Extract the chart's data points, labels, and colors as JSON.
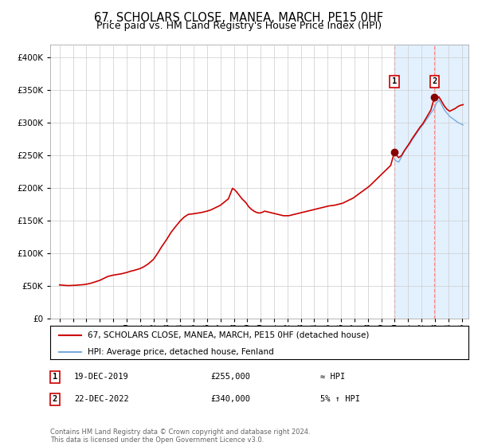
{
  "title": "67, SCHOLARS CLOSE, MANEA, MARCH, PE15 0HF",
  "subtitle": "Price paid vs. HM Land Registry's House Price Index (HPI)",
  "title_fontsize": 10.5,
  "subtitle_fontsize": 9,
  "legend_line1": "67, SCHOLARS CLOSE, MANEA, MARCH, PE15 0HF (detached house)",
  "legend_line2": "HPI: Average price, detached house, Fenland",
  "annotation1_date": "19-DEC-2019",
  "annotation1_price": "£255,000",
  "annotation1_vs_hpi": "≈ HPI",
  "annotation2_date": "22-DEC-2022",
  "annotation2_price": "£340,000",
  "annotation2_vs_hpi": "5% ↑ HPI",
  "footer": "Contains HM Land Registry data © Crown copyright and database right 2024.\nThis data is licensed under the Open Government Licence v3.0.",
  "hpi_color": "#7aaadd",
  "price_color": "#cc0000",
  "marker_color": "#880000",
  "shade_color": "#ddeeff",
  "vline_color": "#ff8888",
  "grid_color": "#cccccc",
  "bg_color": "#ffffff",
  "ylim": [
    0,
    420000
  ],
  "yticks": [
    0,
    50000,
    100000,
    150000,
    200000,
    250000,
    300000,
    350000,
    400000
  ],
  "xlim_left": 1994.3,
  "xlim_right": 2025.5,
  "sale1_x": 2019.97,
  "sale1_y": 255000,
  "sale2_x": 2022.97,
  "sale2_y": 340000,
  "shade_start": 2019.97,
  "shade_end": 2025.5,
  "price_series": [
    [
      1995.0,
      52000
    ],
    [
      1995.3,
      51500
    ],
    [
      1995.6,
      51000
    ],
    [
      1995.9,
      51200
    ],
    [
      1996.2,
      51500
    ],
    [
      1996.5,
      52000
    ],
    [
      1996.8,
      52500
    ],
    [
      1997.1,
      53500
    ],
    [
      1997.4,
      55000
    ],
    [
      1997.7,
      57000
    ],
    [
      1998.0,
      59000
    ],
    [
      1998.3,
      62000
    ],
    [
      1998.6,
      65000
    ],
    [
      1999.0,
      67000
    ],
    [
      1999.3,
      68000
    ],
    [
      1999.6,
      69000
    ],
    [
      2000.0,
      71000
    ],
    [
      2000.3,
      73000
    ],
    [
      2000.6,
      74500
    ],
    [
      2001.0,
      77000
    ],
    [
      2001.3,
      80000
    ],
    [
      2001.6,
      84000
    ],
    [
      2002.0,
      91000
    ],
    [
      2002.3,
      100000
    ],
    [
      2002.6,
      110000
    ],
    [
      2003.0,
      122000
    ],
    [
      2003.3,
      132000
    ],
    [
      2003.6,
      140000
    ],
    [
      2004.0,
      150000
    ],
    [
      2004.3,
      156000
    ],
    [
      2004.6,
      160000
    ],
    [
      2005.0,
      161000
    ],
    [
      2005.3,
      162000
    ],
    [
      2005.6,
      163000
    ],
    [
      2006.0,
      165000
    ],
    [
      2006.3,
      167000
    ],
    [
      2006.6,
      170000
    ],
    [
      2007.0,
      174000
    ],
    [
      2007.3,
      179000
    ],
    [
      2007.6,
      184000
    ],
    [
      2007.9,
      200000
    ],
    [
      2008.1,
      197000
    ],
    [
      2008.3,
      192000
    ],
    [
      2008.6,
      184000
    ],
    [
      2008.9,
      178000
    ],
    [
      2009.1,
      172000
    ],
    [
      2009.3,
      168000
    ],
    [
      2009.5,
      165000
    ],
    [
      2009.7,
      163000
    ],
    [
      2009.9,
      162000
    ],
    [
      2010.1,
      163000
    ],
    [
      2010.3,
      165000
    ],
    [
      2010.5,
      164000
    ],
    [
      2010.7,
      163000
    ],
    [
      2010.9,
      162000
    ],
    [
      2011.1,
      161000
    ],
    [
      2011.3,
      160000
    ],
    [
      2011.5,
      159000
    ],
    [
      2011.7,
      158000
    ],
    [
      2011.9,
      158000
    ],
    [
      2012.1,
      158000
    ],
    [
      2012.3,
      159000
    ],
    [
      2012.5,
      160000
    ],
    [
      2012.7,
      161000
    ],
    [
      2012.9,
      162000
    ],
    [
      2013.1,
      163000
    ],
    [
      2013.3,
      164000
    ],
    [
      2013.5,
      165000
    ],
    [
      2013.7,
      166000
    ],
    [
      2013.9,
      167000
    ],
    [
      2014.1,
      168000
    ],
    [
      2014.3,
      169000
    ],
    [
      2014.5,
      170000
    ],
    [
      2014.7,
      171000
    ],
    [
      2014.9,
      172000
    ],
    [
      2015.1,
      173000
    ],
    [
      2015.3,
      173500
    ],
    [
      2015.5,
      174000
    ],
    [
      2015.7,
      175000
    ],
    [
      2015.9,
      176000
    ],
    [
      2016.1,
      177000
    ],
    [
      2016.3,
      179000
    ],
    [
      2016.5,
      181000
    ],
    [
      2016.7,
      183000
    ],
    [
      2016.9,
      185000
    ],
    [
      2017.1,
      188000
    ],
    [
      2017.3,
      191000
    ],
    [
      2017.5,
      194000
    ],
    [
      2017.7,
      197000
    ],
    [
      2017.9,
      200000
    ],
    [
      2018.1,
      203000
    ],
    [
      2018.3,
      207000
    ],
    [
      2018.5,
      211000
    ],
    [
      2018.7,
      215000
    ],
    [
      2018.9,
      219000
    ],
    [
      2019.1,
      223000
    ],
    [
      2019.3,
      227000
    ],
    [
      2019.5,
      231000
    ],
    [
      2019.7,
      235000
    ],
    [
      2019.97,
      255000
    ],
    [
      2020.1,
      251000
    ],
    [
      2020.3,
      247000
    ],
    [
      2020.5,
      250000
    ],
    [
      2020.7,
      257000
    ],
    [
      2020.9,
      263000
    ],
    [
      2021.1,
      269000
    ],
    [
      2021.3,
      276000
    ],
    [
      2021.5,
      282000
    ],
    [
      2021.7,
      288000
    ],
    [
      2021.9,
      294000
    ],
    [
      2022.1,
      299000
    ],
    [
      2022.3,
      306000
    ],
    [
      2022.5,
      313000
    ],
    [
      2022.7,
      320000
    ],
    [
      2022.97,
      340000
    ],
    [
      2023.1,
      336000
    ],
    [
      2023.3,
      340000
    ],
    [
      2023.5,
      333000
    ],
    [
      2023.7,
      326000
    ],
    [
      2023.9,
      321000
    ],
    [
      2024.1,
      318000
    ],
    [
      2024.3,
      320000
    ],
    [
      2024.5,
      322000
    ],
    [
      2024.7,
      325000
    ],
    [
      2024.9,
      327000
    ],
    [
      2025.1,
      328000
    ]
  ],
  "hpi_series": [
    [
      2019.97,
      245000
    ],
    [
      2020.1,
      242000
    ],
    [
      2020.3,
      240000
    ],
    [
      2020.5,
      248000
    ],
    [
      2020.7,
      256000
    ],
    [
      2020.9,
      262000
    ],
    [
      2021.1,
      267000
    ],
    [
      2021.3,
      274000
    ],
    [
      2021.5,
      280000
    ],
    [
      2021.7,
      286000
    ],
    [
      2021.9,
      292000
    ],
    [
      2022.1,
      297000
    ],
    [
      2022.3,
      303000
    ],
    [
      2022.5,
      309000
    ],
    [
      2022.7,
      315000
    ],
    [
      2022.97,
      323000
    ],
    [
      2023.1,
      330000
    ],
    [
      2023.3,
      335000
    ],
    [
      2023.5,
      328000
    ],
    [
      2023.7,
      320000
    ],
    [
      2023.9,
      315000
    ],
    [
      2024.1,
      310000
    ],
    [
      2024.3,
      307000
    ],
    [
      2024.5,
      304000
    ],
    [
      2024.7,
      301000
    ],
    [
      2024.9,
      299000
    ],
    [
      2025.1,
      297000
    ]
  ]
}
